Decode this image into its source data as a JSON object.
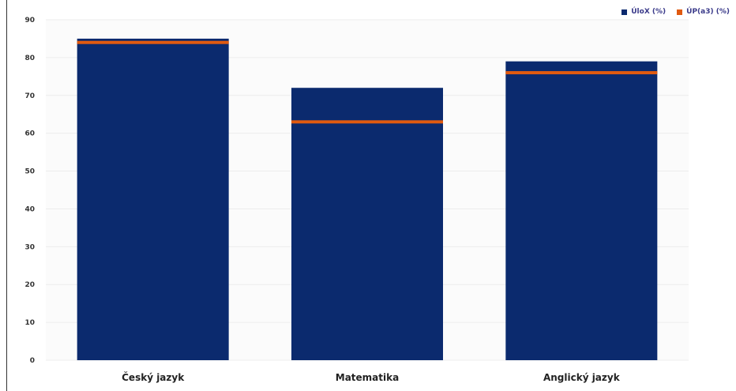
{
  "chart_data": {
    "type": "bar",
    "categories": [
      "Český jazyk",
      "Matematika",
      "Anglický jazyk"
    ],
    "series": [
      {
        "name": "ÚloX (%)",
        "values": [
          85,
          72,
          79
        ],
        "color": "#0b2a6e"
      },
      {
        "name": "ÚP(a3) (%)",
        "values": [
          84,
          63,
          76
        ],
        "color": "#e05a10"
      }
    ],
    "xlabel": "",
    "ylabel": "",
    "ylim": [
      0,
      90
    ],
    "yticks": [
      "0",
      "10",
      "20",
      "30",
      "40",
      "50",
      "60",
      "70",
      "80",
      "90"
    ],
    "grid": true,
    "legend": "top-right"
  },
  "legend": {
    "item1": "ÚloX (%)",
    "item2": "ÚP(a3) (%)"
  }
}
